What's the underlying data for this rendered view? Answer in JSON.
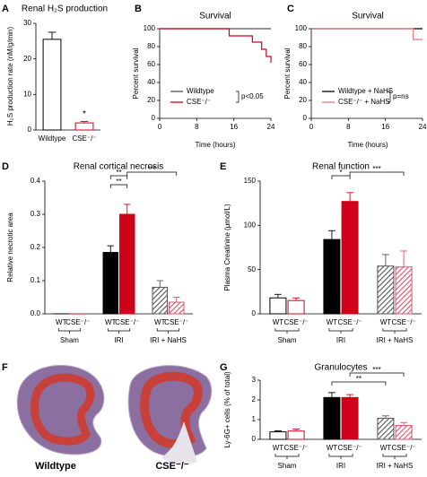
{
  "chart_data": [
    {
      "panel": "A",
      "type": "bar",
      "title": "Renal H₂S production",
      "y_label": "H₂S production rate (nM/g/min)",
      "categories": [
        "Wildtype",
        "CSE⁻/⁻"
      ],
      "values": [
        25.5,
        2
      ],
      "errors": [
        2,
        0.4
      ],
      "colors": [
        "#000000",
        "#d0021b"
      ],
      "fills": [
        "#ffffff",
        "#ffffff"
      ],
      "hatched": [
        false,
        false
      ],
      "ylim": [
        0,
        30
      ],
      "yticks": [
        0,
        10,
        20,
        30
      ],
      "annotations": [
        "*"
      ]
    },
    {
      "panel": "B",
      "type": "line",
      "title": "Survival",
      "x_label": "Time (hours)",
      "y_label": "Percent survival",
      "series": [
        {
          "name": "Wildtype",
          "color": "#555555",
          "x": [
            0,
            24
          ],
          "values": [
            100,
            100
          ]
        },
        {
          "name": "CSE⁻/⁻",
          "color": "#d0021b",
          "x": [
            0,
            15,
            15,
            20,
            20,
            22,
            22,
            23,
            23,
            24,
            24
          ],
          "values": [
            100,
            100,
            92,
            92,
            85,
            85,
            77,
            77,
            69,
            69,
            62
          ]
        }
      ],
      "xlim": [
        0,
        24
      ],
      "xticks": [
        0,
        8,
        16,
        24
      ],
      "ylim": [
        0,
        100
      ],
      "yticks": [
        0,
        20,
        40,
        60,
        80,
        100
      ],
      "annotations": [
        "p<0.05"
      ]
    },
    {
      "panel": "C",
      "type": "line",
      "title": "Survival",
      "x_label": "Time (hours)",
      "y_label": "Percent survival",
      "series": [
        {
          "name": "Wildtype + NaHS",
          "color": "#000000",
          "x": [
            0,
            24
          ],
          "values": [
            100,
            100
          ]
        },
        {
          "name": "CSE⁻/⁻ + NaHS",
          "color": "#e87a7a",
          "x": [
            0,
            22,
            22,
            24
          ],
          "values": [
            100,
            100,
            88,
            88
          ]
        }
      ],
      "xlim": [
        0,
        24
      ],
      "xticks": [
        0,
        8,
        16,
        24
      ],
      "ylim": [
        0,
        100
      ],
      "yticks": [
        0,
        20,
        40,
        60,
        80,
        100
      ],
      "annotations": [
        "p=ns"
      ]
    },
    {
      "panel": "D",
      "type": "bar",
      "title": "Renal cortical necrosis",
      "y_label": "Relative necrotic area",
      "groups": [
        "Sham",
        "IRI",
        "IRI + NaHS"
      ],
      "categories": [
        "WT",
        "CSE⁻/⁻",
        "WT",
        "CSE⁻/⁻",
        "WT",
        "CSE⁻/⁻"
      ],
      "values": [
        0,
        0,
        0.185,
        0.3,
        0.08,
        0.035
      ],
      "errors": [
        0,
        0,
        0.02,
        0.03,
        0.02,
        0.015
      ],
      "colors": [
        "#000000",
        "#d0021b",
        "#000000",
        "#d0021b",
        "#555555",
        "#e0506a"
      ],
      "fills": [
        "#ffffff",
        "#ffffff",
        "#000000",
        "#d0021b",
        "#555555",
        "#e0506a"
      ],
      "hatched": [
        false,
        false,
        false,
        false,
        true,
        true
      ],
      "ylim": [
        0,
        0.4
      ],
      "yticks": [
        {
          "value": 0,
          "label": "0.0"
        },
        {
          "value": 0.1,
          "label": "0.1"
        },
        {
          "value": 0.2,
          "label": "0.2"
        },
        {
          "value": 0.3,
          "label": "0.3"
        },
        {
          "value": 0.4,
          "label": "0.4"
        }
      ],
      "annotations": [
        "**",
        "**",
        "***"
      ]
    },
    {
      "panel": "E",
      "type": "bar",
      "title": "Renal function",
      "y_label": "Plasma Creatinine (μmol/L)",
      "groups": [
        "Sham",
        "IRI",
        "IRI + NaHS"
      ],
      "categories": [
        "WT",
        "CSE⁻/⁻",
        "WT",
        "CSE⁻/⁻",
        "WT",
        "CSE⁻/⁻"
      ],
      "values": [
        18,
        15,
        84,
        127,
        54,
        53
      ],
      "errors": [
        4,
        3,
        10,
        10,
        13,
        18
      ],
      "colors": [
        "#000000",
        "#d0021b",
        "#000000",
        "#d0021b",
        "#555555",
        "#e0506a"
      ],
      "fills": [
        "#ffffff",
        "#ffffff",
        "#000000",
        "#d0021b",
        "#555555",
        "#e0506a"
      ],
      "hatched": [
        false,
        false,
        false,
        false,
        true,
        true
      ],
      "ylim": [
        0,
        150
      ],
      "yticks": [
        0,
        50,
        100,
        150
      ],
      "annotations": [
        "*",
        "***"
      ]
    },
    {
      "panel": "F",
      "type": "image",
      "labels": [
        "Wildtype",
        "CSE⁻/⁻"
      ]
    },
    {
      "panel": "G",
      "type": "bar",
      "title": "Granulocytes",
      "y_label": "Ly-6G+ cells (% of total)",
      "groups": [
        "Sham",
        "IRI",
        "IRI + NaHS"
      ],
      "categories": [
        "WT",
        "CSE⁻/⁻",
        "WT",
        "CSE⁻/⁻",
        "WT",
        "CSE⁻/⁻"
      ],
      "values": [
        0.38,
        0.42,
        2.12,
        2.12,
        1.07,
        0.7
      ],
      "errors": [
        0.05,
        0.1,
        0.25,
        0.15,
        0.12,
        0.15
      ],
      "colors": [
        "#000000",
        "#d0021b",
        "#000000",
        "#d0021b",
        "#555555",
        "#e0506a"
      ],
      "fills": [
        "#ffffff",
        "#ffffff",
        "#000000",
        "#d0021b",
        "#555555",
        "#e0506a"
      ],
      "hatched": [
        false,
        false,
        false,
        false,
        true,
        true
      ],
      "ylim": [
        0,
        3
      ],
      "yticks": [
        0,
        1,
        2,
        3
      ],
      "annotations": [
        "**",
        "***"
      ]
    }
  ]
}
